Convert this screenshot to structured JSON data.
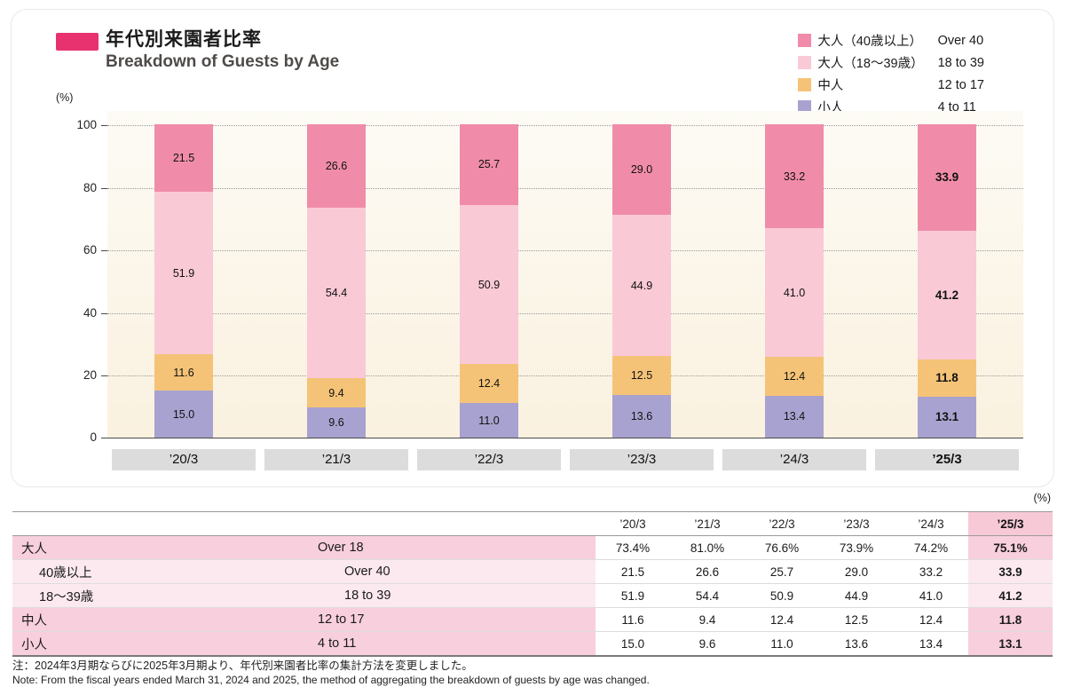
{
  "header": {
    "title_ja": "年代別来園者比率",
    "title_en": "Breakdown of Guests by Age",
    "accent_color": "#e8326f"
  },
  "chart_data": {
    "type": "bar",
    "stacked": true,
    "unit_label": "(%)",
    "categories": [
      "’20/3",
      "’21/3",
      "’22/3",
      "’23/3",
      "’24/3",
      "’25/3"
    ],
    "series": [
      {
        "name_ja": "大人（40歳以上）",
        "name_en": "Over 40",
        "color": "#f08ca9",
        "values": [
          21.5,
          26.6,
          25.7,
          29.0,
          33.2,
          33.9
        ]
      },
      {
        "name_ja": "大人（18〜39歳）",
        "name_en": "18 to 39",
        "color": "#f9c9d6",
        "values": [
          51.9,
          54.4,
          50.9,
          44.9,
          41.0,
          41.2
        ]
      },
      {
        "name_ja": "中人",
        "name_en": "12 to 17",
        "color": "#f5c377",
        "values": [
          11.6,
          9.4,
          12.4,
          12.5,
          12.4,
          11.8
        ]
      },
      {
        "name_ja": "小人",
        "name_en": "4 to 11",
        "color": "#a8a2d0",
        "values": [
          15.0,
          9.6,
          11.0,
          13.6,
          13.4,
          13.1
        ]
      }
    ],
    "ylim": [
      0,
      100
    ],
    "yticks": [
      0,
      20,
      40,
      60,
      80,
      100
    ],
    "grid": "dotted-horizontal",
    "legend_position": "top-right",
    "highlight_category": "’25/3"
  },
  "table": {
    "unit_label": "(%)",
    "col_headers": [
      "’20/3",
      "’21/3",
      "’22/3",
      "’23/3",
      "’24/3",
      "’25/3"
    ],
    "rows": [
      {
        "label_ja": "大人",
        "label_en": "Over 18",
        "indent": false,
        "values": [
          "73.4%",
          "81.0%",
          "76.6%",
          "73.9%",
          "74.2%",
          "75.1%"
        ]
      },
      {
        "label_ja": "40歳以上",
        "label_en": "Over 40",
        "indent": true,
        "values": [
          "21.5",
          "26.6",
          "25.7",
          "29.0",
          "33.2",
          "33.9"
        ]
      },
      {
        "label_ja": "18〜39歳",
        "label_en": "18 to 39",
        "indent": true,
        "values": [
          "51.9",
          "54.4",
          "50.9",
          "44.9",
          "41.0",
          "41.2"
        ]
      },
      {
        "label_ja": "中人",
        "label_en": "12 to 17",
        "indent": false,
        "values": [
          "11.6",
          "9.4",
          "12.4",
          "12.5",
          "12.4",
          "11.8"
        ]
      },
      {
        "label_ja": "小人",
        "label_en": "4 to 11",
        "indent": false,
        "values": [
          "15.0",
          "9.6",
          "11.0",
          "13.6",
          "13.4",
          "13.1"
        ]
      }
    ]
  },
  "notes": {
    "ja": "注：2024年3月期ならびに2025年3月期より、年代別来園者比率の集計方法を変更しました。",
    "en": "Note: From the fiscal years ended March 31, 2024 and 2025, the method of aggregating the breakdown of guests by age was changed."
  }
}
